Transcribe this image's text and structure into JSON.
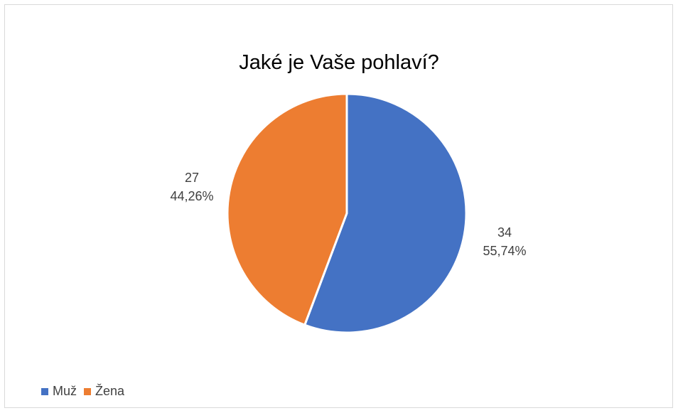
{
  "chart_data": {
    "type": "pie",
    "title": "Jaké je Vaše pohlaví?",
    "categories": [
      "Muž",
      "Žena"
    ],
    "values": [
      34,
      27
    ],
    "percent_labels": [
      "55,74%",
      "44,26%"
    ],
    "colors": [
      "#4472C4",
      "#ED7D31"
    ],
    "legend_position": "bottom-left"
  }
}
